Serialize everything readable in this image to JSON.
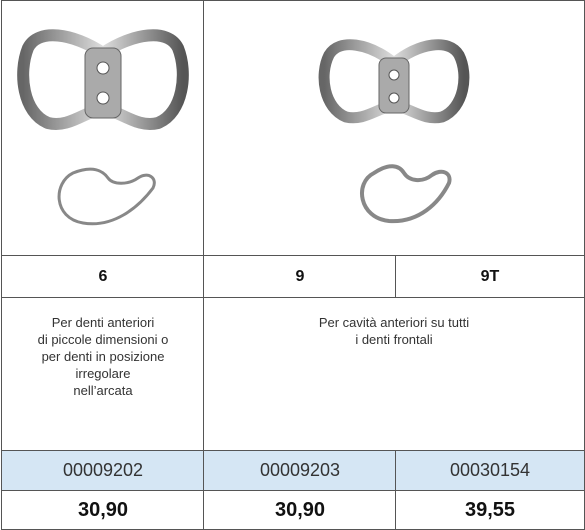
{
  "table": {
    "header": [
      "6",
      "9",
      "9T"
    ],
    "descriptions": [
      [
        "Per denti anteriori",
        "di piccole dimensioni o",
        "per denti in posizione",
        "irregolare",
        "nell’arcata"
      ],
      [
        "Per cavità anteriori su tutti",
        "i denti frontali"
      ]
    ],
    "codes": [
      "00009202",
      "00009203",
      "00030154"
    ],
    "prices": [
      "30,90",
      "30,90",
      "39,55"
    ]
  }
}
